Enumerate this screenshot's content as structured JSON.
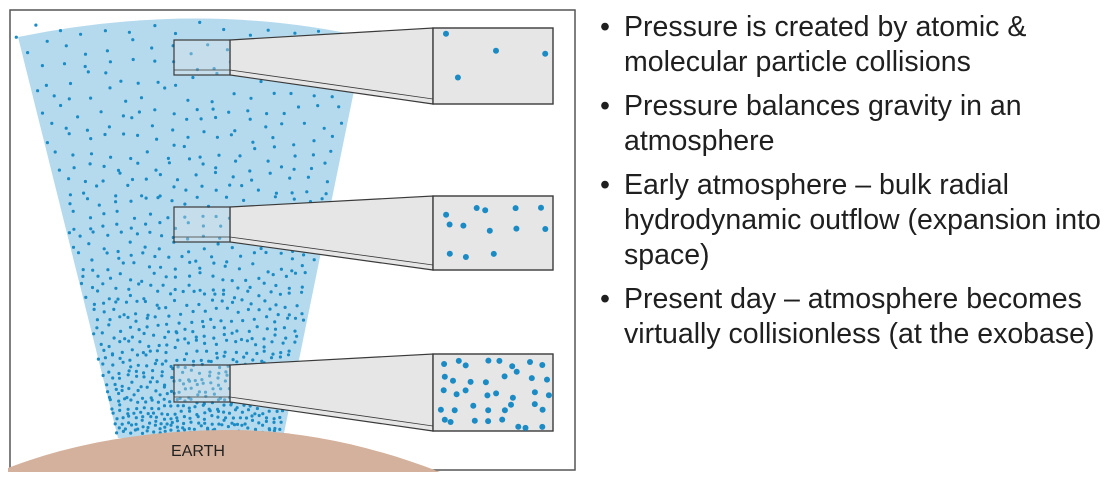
{
  "diagram": {
    "earth_label": "EARTH",
    "colors": {
      "sky": "#b5daee",
      "earth": "#d4b19c",
      "particle": "#1a8bc4",
      "box_fill": "#e6e6e6",
      "box_stroke": "#3a3a3a",
      "frame": "#555555"
    },
    "sample_boxes": [
      {
        "level": "top",
        "particle_count": 4
      },
      {
        "level": "middle",
        "particle_count": 13
      },
      {
        "level": "bottom",
        "particle_count": 40
      }
    ]
  },
  "bullets": [
    "Pressure is created by atomic & molecular particle collisions",
    "Pressure balances gravity in an atmosphere",
    "Early atmosphere – bulk radial hydrodynamic outflow (expansion into space)",
    "Present day – atmosphere becomes virtually collisionless (at the exobase)"
  ]
}
